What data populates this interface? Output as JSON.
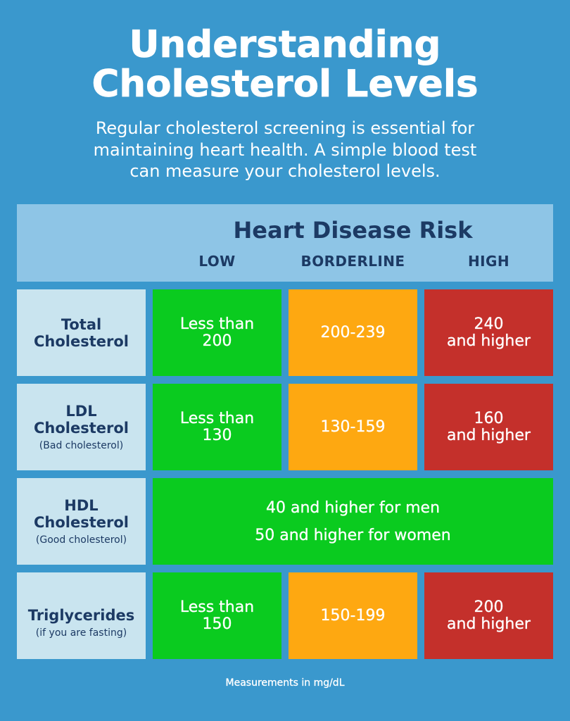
{
  "title": {
    "line1": "Understanding",
    "line2": "Cholesterol Levels"
  },
  "intro": {
    "lines": [
      "Regular cholesterol screening is essential for",
      "maintaining heart health. A simple blood test",
      "can measure your cholesterol levels."
    ]
  },
  "table": {
    "heading": "Heart Disease Risk",
    "columns": {
      "low": "LOW",
      "borderline": "BORDERLINE",
      "high": "HIGH"
    },
    "rows": [
      {
        "name_lines": [
          "Total",
          "Cholesterol"
        ],
        "low": [
          "Less than",
          "200"
        ],
        "borderline": [
          "200-239"
        ],
        "high": [
          "240",
          "and higher"
        ]
      },
      {
        "name_lines": [
          "LDL",
          "Cholesterol"
        ],
        "note": "(Bad cholesterol)",
        "low": [
          "Less than",
          "130"
        ],
        "borderline": [
          "130-159"
        ],
        "high": [
          "160",
          "and higher"
        ]
      },
      {
        "name_lines": [
          "HDL",
          "Cholesterol"
        ],
        "note": "(Good cholesterol)",
        "all_levels": [
          "40 and higher for men",
          "50 and higher for women"
        ]
      },
      {
        "name_lines": [
          "Triglycerides"
        ],
        "note": "(if you are fasting)",
        "low": [
          "Less than",
          "150"
        ],
        "borderline": [
          "150-199"
        ],
        "high": [
          "200",
          "and higher"
        ]
      }
    ]
  },
  "footer": "Measurements in mg/dL",
  "colors": {
    "background": "#3a98cd",
    "header_band": "#8ec5e6",
    "label_cell": "#c9e4ef",
    "navy_text": "#1c3a64",
    "low": "#0acb1f",
    "borderline": "#fea811",
    "high": "#c4302b",
    "white_text": "#ffffff"
  }
}
